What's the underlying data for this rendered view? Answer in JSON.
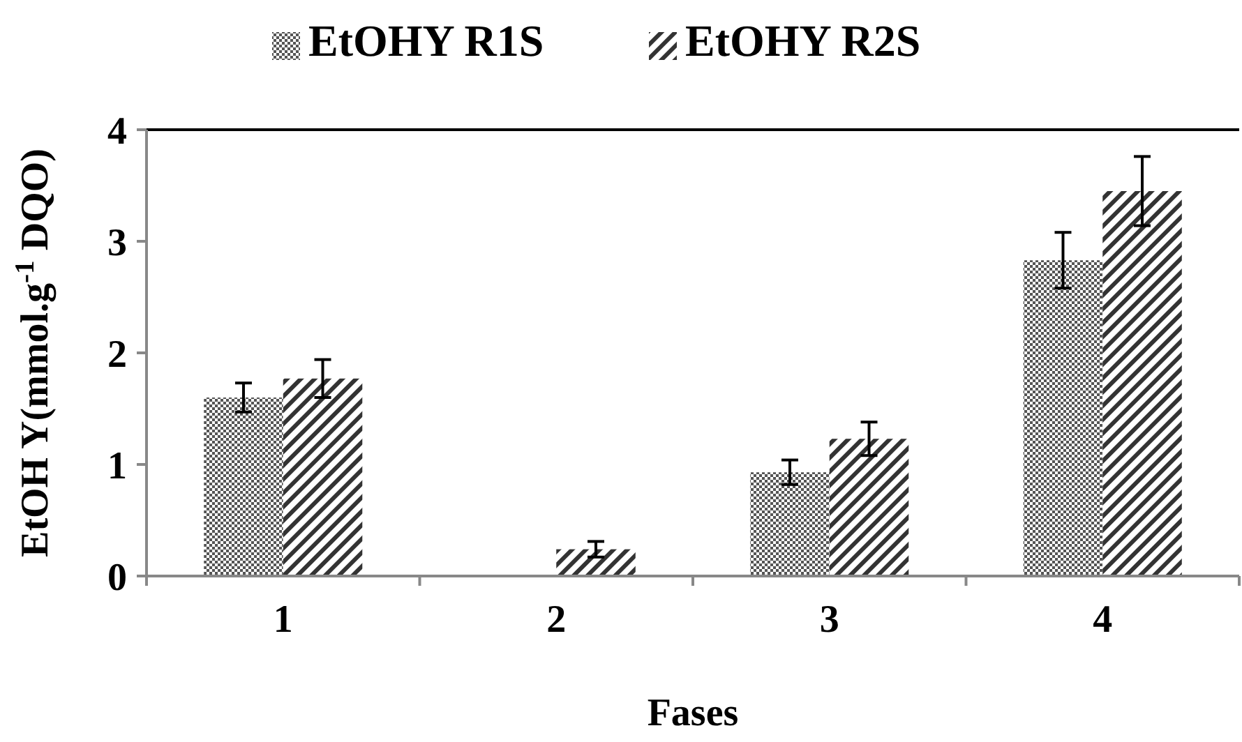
{
  "chart_data": {
    "type": "bar",
    "xlabel": "Fases",
    "ylabel": "EtOH Y(mmol.g$^{-1}$ DQO)",
    "categories": [
      "1",
      "2",
      "3",
      "4"
    ],
    "series": [
      {
        "name": "EtOHY R1S",
        "color": "#555555",
        "values": [
          1.6,
          0.01,
          0.93,
          2.83
        ],
        "errors": [
          0.13,
          null,
          0.11,
          0.25
        ]
      },
      {
        "name": "EtOHY R2S",
        "color": "#333333",
        "values": [
          1.77,
          0.24,
          1.23,
          3.45
        ],
        "errors": [
          0.17,
          0.07,
          0.15,
          0.31
        ]
      }
    ],
    "ylim": [
      0,
      4
    ],
    "yticks": [
      0,
      1,
      2,
      3,
      4
    ],
    "grid": false,
    "legend": "top"
  }
}
